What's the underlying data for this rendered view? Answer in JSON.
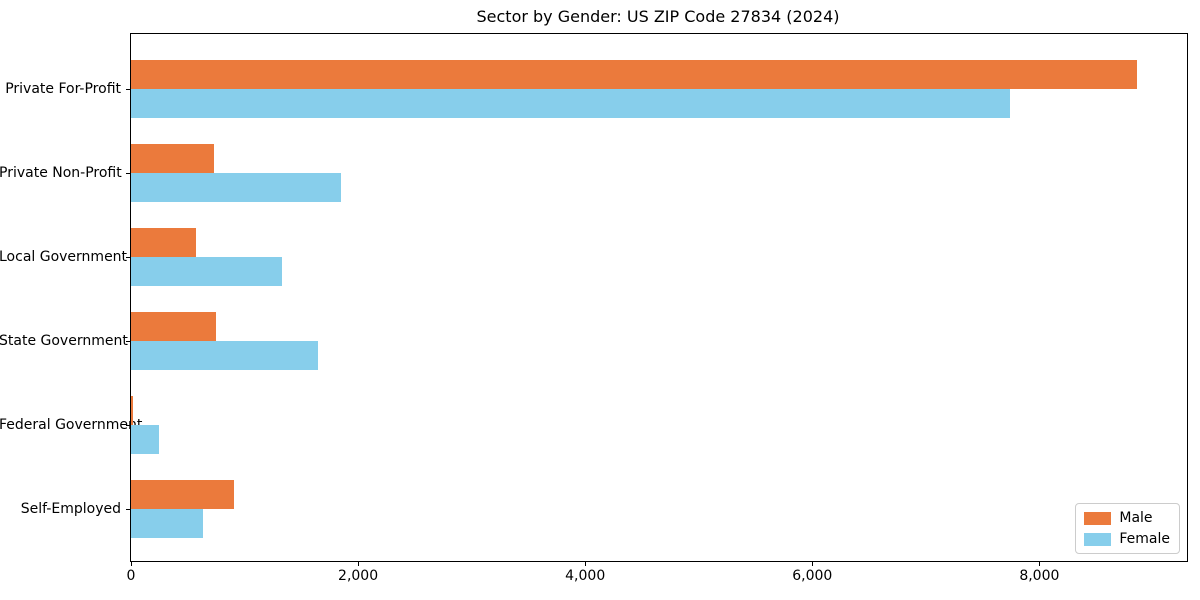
{
  "title": "Sector by Gender: US ZIP Code 27834 (2024)",
  "chart_data": {
    "type": "bar",
    "orientation": "horizontal",
    "title": "Sector by Gender: US ZIP Code 27834 (2024)",
    "categories": [
      "Private For-Profit",
      "Private Non-Profit",
      "Local Government",
      "State Government",
      "Federal Government",
      "Self-Employed"
    ],
    "series": [
      {
        "name": "Male",
        "color": "#EB7A3C",
        "values": [
          8860,
          730,
          570,
          750,
          15,
          910
        ]
      },
      {
        "name": "Female",
        "color": "#87CEEB",
        "values": [
          7740,
          1850,
          1330,
          1650,
          250,
          630
        ]
      }
    ],
    "xlabel": "",
    "ylabel": "",
    "xlim": [
      0,
      9300
    ],
    "xticks": [
      0,
      2000,
      4000,
      6000,
      8000
    ],
    "xtick_labels": [
      "0",
      "2,000",
      "4,000",
      "6,000",
      "8,000"
    ],
    "grid": false,
    "legend_position": "lower right"
  },
  "legend": {
    "items": [
      {
        "label": "Male",
        "color": "#EB7A3C"
      },
      {
        "label": "Female",
        "color": "#87CEEB"
      }
    ]
  }
}
